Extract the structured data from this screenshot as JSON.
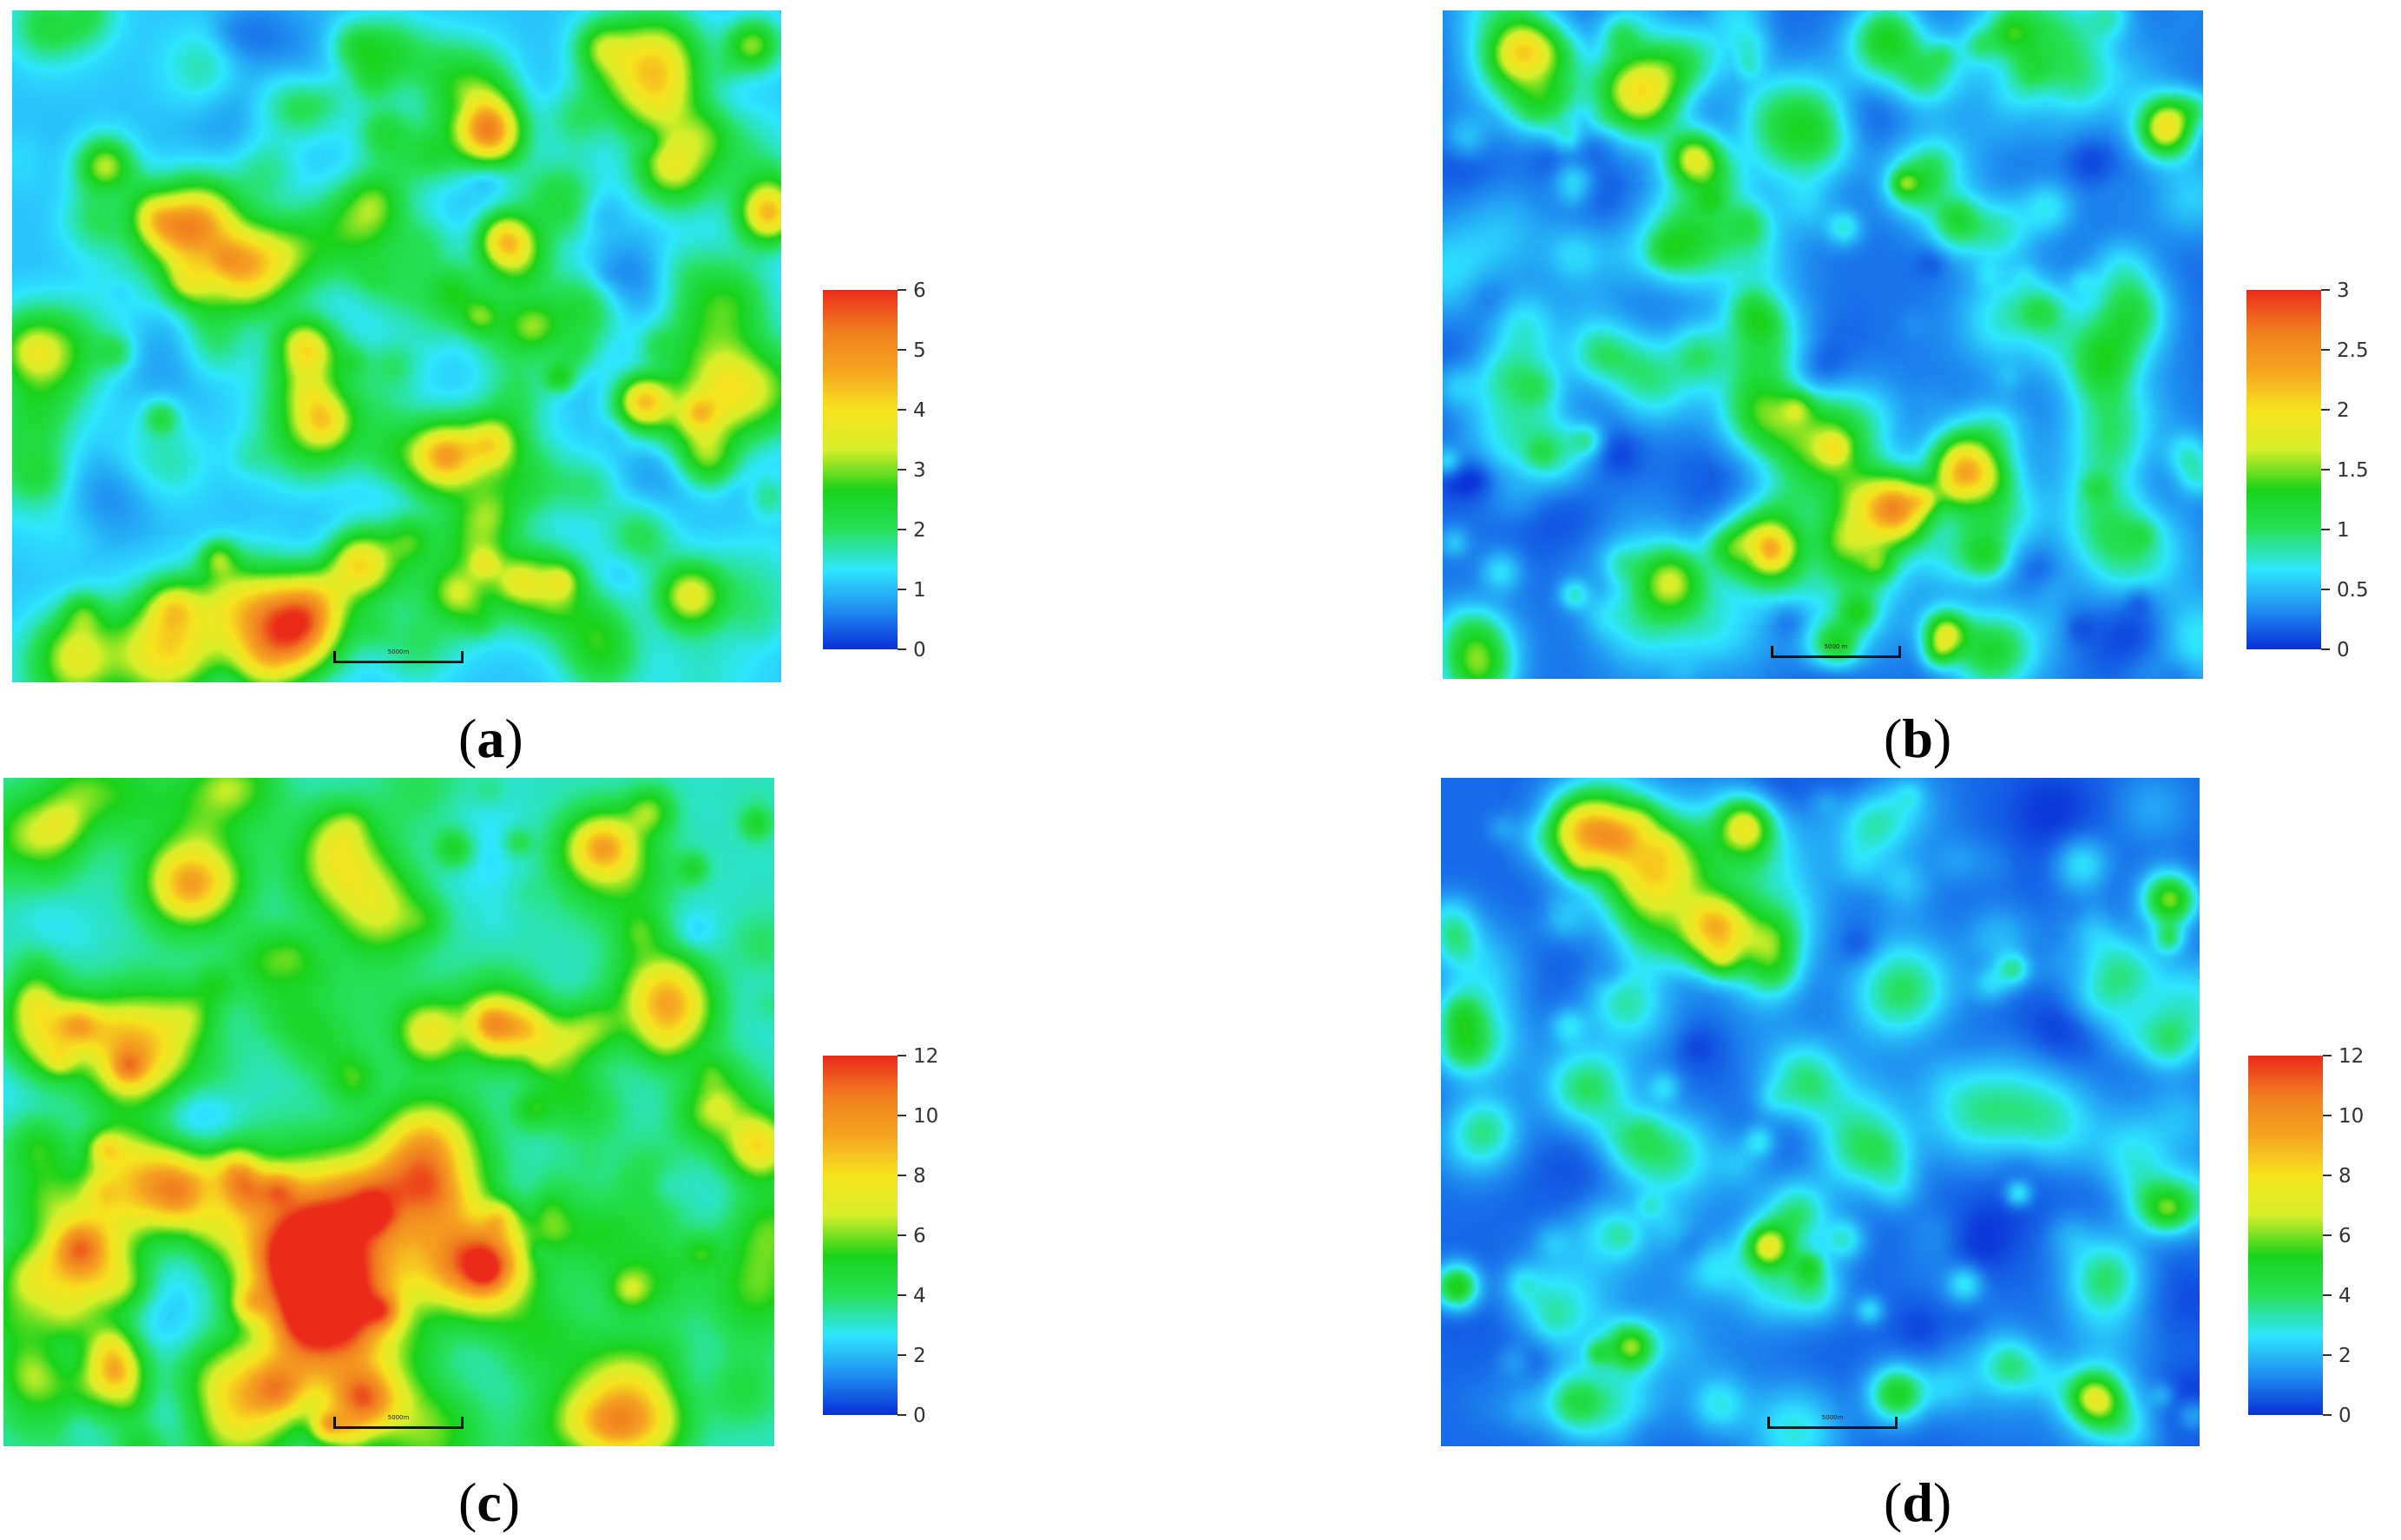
{
  "panels": [
    {
      "id": "a",
      "caption_open": "(",
      "caption_letter": "a",
      "caption_close": ")",
      "scale_text": "5000m",
      "colorbar": {
        "min": 0,
        "max": 6,
        "ticks": [
          "0",
          "1",
          "2",
          "3",
          "4",
          "5",
          "6"
        ]
      }
    },
    {
      "id": "b",
      "caption_open": "(",
      "caption_letter": "b",
      "caption_close": ")",
      "scale_text": "5000 m",
      "colorbar": {
        "min": 0,
        "max": 3,
        "ticks": [
          "0",
          "0.5",
          "1",
          "1.5",
          "2",
          "2.5",
          "3"
        ]
      }
    },
    {
      "id": "c",
      "caption_open": "(",
      "caption_letter": "c",
      "caption_close": ")",
      "scale_text": "5000m",
      "colorbar": {
        "min": 0,
        "max": 12,
        "ticks": [
          "0",
          "2",
          "4",
          "6",
          "8",
          "10",
          "12"
        ]
      }
    },
    {
      "id": "d",
      "caption_open": "(",
      "caption_letter": "d",
      "caption_close": ")",
      "scale_text": "5000m",
      "colorbar": {
        "min": 0,
        "max": 12,
        "ticks": [
          "0",
          "2",
          "4",
          "6",
          "8",
          "10",
          "12"
        ]
      }
    }
  ],
  "chart_data": [
    {
      "type": "heatmap",
      "panel": "a",
      "colorscale": "jet",
      "zlim": [
        0,
        6
      ],
      "colorbar_ticks": [
        0,
        1,
        2,
        3,
        4,
        5,
        6
      ]
    },
    {
      "type": "heatmap",
      "panel": "b",
      "colorscale": "jet",
      "zlim": [
        0,
        3
      ],
      "colorbar_ticks": [
        0,
        0.5,
        1,
        1.5,
        2,
        2.5,
        3
      ]
    },
    {
      "type": "heatmap",
      "panel": "c",
      "colorscale": "jet",
      "zlim": [
        0,
        12
      ],
      "colorbar_ticks": [
        0,
        2,
        4,
        6,
        8,
        10,
        12
      ]
    },
    {
      "type": "heatmap",
      "panel": "d",
      "colorscale": "jet",
      "zlim": [
        0,
        12
      ],
      "colorbar_ticks": [
        0,
        2,
        4,
        6,
        8,
        10,
        12
      ]
    }
  ],
  "colors": {
    "jet_stops": [
      "#0a2fd8",
      "#1f8ef0",
      "#2fe6ff",
      "#27e05a",
      "#1ad21a",
      "#d6ef2a",
      "#f6e31e",
      "#f5a421",
      "#f07d1f",
      "#ea2b1a"
    ]
  }
}
